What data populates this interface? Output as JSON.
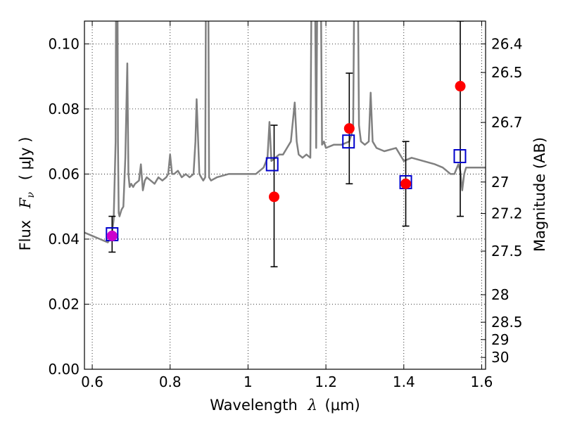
{
  "chart_data": {
    "type": "scatter",
    "xlabel": {
      "prefix": "Wavelength",
      "symbol": "λ",
      "unit": "(μm)"
    },
    "ylabel": {
      "prefix": "Flux",
      "symbol": "F",
      "subscript": "ν",
      "unit": "( μJy )"
    },
    "y2label": "Magnitude (AB)",
    "xlim": [
      0.58,
      1.61
    ],
    "ylim": [
      0.0,
      0.107
    ],
    "grid": true,
    "x_ticks": [
      {
        "v": 0.6,
        "label": "0.6"
      },
      {
        "v": 0.8,
        "label": "0.8"
      },
      {
        "v": 1.0,
        "label": "1"
      },
      {
        "v": 1.2,
        "label": "1.2"
      },
      {
        "v": 1.4,
        "label": "1.4"
      },
      {
        "v": 1.6,
        "label": "1.6"
      }
    ],
    "y_ticks": [
      {
        "v": 0.0,
        "label": "0.00"
      },
      {
        "v": 0.02,
        "label": "0.02"
      },
      {
        "v": 0.04,
        "label": "0.04"
      },
      {
        "v": 0.06,
        "label": "0.06"
      },
      {
        "v": 0.08,
        "label": "0.08"
      },
      {
        "v": 0.1,
        "label": "0.10"
      }
    ],
    "y2_ticks": [
      {
        "label": "26.4",
        "mag": 26.4
      },
      {
        "label": "26.5",
        "mag": 26.5
      },
      {
        "label": "26.7",
        "mag": 26.7
      },
      {
        "label": "27",
        "mag": 27.0
      },
      {
        "label": "27.2",
        "mag": 27.2
      },
      {
        "label": "27.5",
        "mag": 27.5
      },
      {
        "label": "28",
        "mag": 28.0
      },
      {
        "label": "28.5",
        "mag": 28.5
      },
      {
        "label": "29",
        "mag": 29.0
      },
      {
        "label": "30",
        "mag": 30.0
      }
    ],
    "series": [
      {
        "type": "line",
        "color": "#808080",
        "x": [
          0.58,
          0.6,
          0.62,
          0.64,
          0.65,
          0.655,
          0.66,
          0.662,
          0.664,
          0.666,
          0.668,
          0.67,
          0.675,
          0.68,
          0.685,
          0.69,
          0.693,
          0.696,
          0.7,
          0.705,
          0.71,
          0.72,
          0.725,
          0.73,
          0.735,
          0.74,
          0.75,
          0.76,
          0.77,
          0.78,
          0.79,
          0.795,
          0.8,
          0.805,
          0.81,
          0.82,
          0.83,
          0.84,
          0.85,
          0.86,
          0.865,
          0.868,
          0.872,
          0.875,
          0.88,
          0.885,
          0.89,
          0.893,
          0.897,
          0.9,
          0.905,
          0.92,
          0.95,
          0.98,
          1.0,
          1.02,
          1.04,
          1.05,
          1.055,
          1.06,
          1.07,
          1.08,
          1.09,
          1.1,
          1.11,
          1.12,
          1.125,
          1.13,
          1.14,
          1.15,
          1.16,
          1.165,
          1.17,
          1.175,
          1.18,
          1.185,
          1.19,
          1.195,
          1.2,
          1.22,
          1.24,
          1.26,
          1.265,
          1.27,
          1.275,
          1.28,
          1.285,
          1.29,
          1.3,
          1.31,
          1.315,
          1.32,
          1.33,
          1.35,
          1.38,
          1.4,
          1.42,
          1.45,
          1.48,
          1.5,
          1.52,
          1.53,
          1.54,
          1.545,
          1.55,
          1.555,
          1.56,
          1.58,
          1.61
        ],
        "y": [
          0.042,
          0.041,
          0.04,
          0.039,
          0.041,
          0.046,
          0.07,
          0.15,
          0.15,
          0.07,
          0.048,
          0.047,
          0.049,
          0.05,
          0.065,
          0.094,
          0.06,
          0.056,
          0.057,
          0.056,
          0.057,
          0.058,
          0.063,
          0.055,
          0.058,
          0.059,
          0.058,
          0.057,
          0.059,
          0.058,
          0.059,
          0.06,
          0.066,
          0.06,
          0.06,
          0.061,
          0.059,
          0.06,
          0.059,
          0.06,
          0.07,
          0.083,
          0.07,
          0.06,
          0.059,
          0.058,
          0.059,
          0.15,
          0.15,
          0.059,
          0.058,
          0.059,
          0.06,
          0.06,
          0.06,
          0.06,
          0.062,
          0.065,
          0.076,
          0.064,
          0.065,
          0.066,
          0.066,
          0.068,
          0.07,
          0.082,
          0.07,
          0.066,
          0.065,
          0.066,
          0.065,
          0.15,
          0.15,
          0.068,
          0.15,
          0.15,
          0.069,
          0.07,
          0.068,
          0.069,
          0.069,
          0.07,
          0.072,
          0.074,
          0.15,
          0.15,
          0.075,
          0.07,
          0.069,
          0.07,
          0.085,
          0.07,
          0.068,
          0.067,
          0.068,
          0.064,
          0.065,
          0.064,
          0.063,
          0.062,
          0.06,
          0.06,
          0.063,
          0.061,
          0.055,
          0.06,
          0.062,
          0.062,
          0.062
        ]
      },
      {
        "type": "scatter",
        "marker": "circle",
        "color": "#ff0000",
        "points": [
          {
            "x": 0.651,
            "y": 0.041,
            "err_lo": 0.036,
            "err_hi": 0.047,
            "color": "#cc00cc"
          },
          {
            "x": 1.067,
            "y": 0.053,
            "err_lo": 0.0315,
            "err_hi": 0.075
          },
          {
            "x": 1.26,
            "y": 0.074,
            "err_lo": 0.057,
            "err_hi": 0.091
          },
          {
            "x": 1.405,
            "y": 0.057,
            "err_lo": 0.044,
            "err_hi": 0.07
          },
          {
            "x": 1.545,
            "y": 0.087,
            "err_lo": 0.047,
            "err_hi": 0.107
          }
        ]
      },
      {
        "type": "scatter",
        "marker": "open-square",
        "color": "#0000cc",
        "x": [
          0.651,
          1.062,
          1.258,
          1.405,
          1.544
        ],
        "y": [
          0.0415,
          0.063,
          0.07,
          0.0575,
          0.0655
        ]
      }
    ]
  }
}
